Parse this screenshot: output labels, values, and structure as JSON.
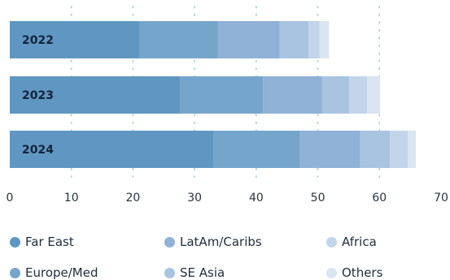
{
  "chart_data": {
    "type": "bar",
    "orientation": "horizontal",
    "stacked": true,
    "categories": [
      "2022",
      "2023",
      "2024"
    ],
    "series": [
      {
        "name": "Far East",
        "color": "#5f97c2",
        "values": [
          21.0,
          27.7,
          33.1
        ]
      },
      {
        "name": "Europe/Med",
        "color": "#76a5cb",
        "values": [
          12.8,
          13.4,
          14.0
        ]
      },
      {
        "name": "LatAm/Caribs",
        "color": "#8fb2d6",
        "values": [
          10.0,
          9.6,
          9.8
        ]
      },
      {
        "name": "SE Asia",
        "color": "#a8c4e1",
        "values": [
          4.7,
          4.4,
          4.8
        ]
      },
      {
        "name": "Africa",
        "color": "#c2d5ea",
        "values": [
          1.8,
          2.9,
          2.9
        ]
      },
      {
        "name": "Others",
        "color": "#d9e5f2",
        "values": [
          1.5,
          2.1,
          1.3
        ]
      }
    ],
    "xlim": [
      0,
      70
    ],
    "xticks": [
      0,
      10,
      20,
      30,
      40,
      50,
      60,
      70
    ],
    "grid": "vertical dotted",
    "legend_position": "bottom"
  }
}
